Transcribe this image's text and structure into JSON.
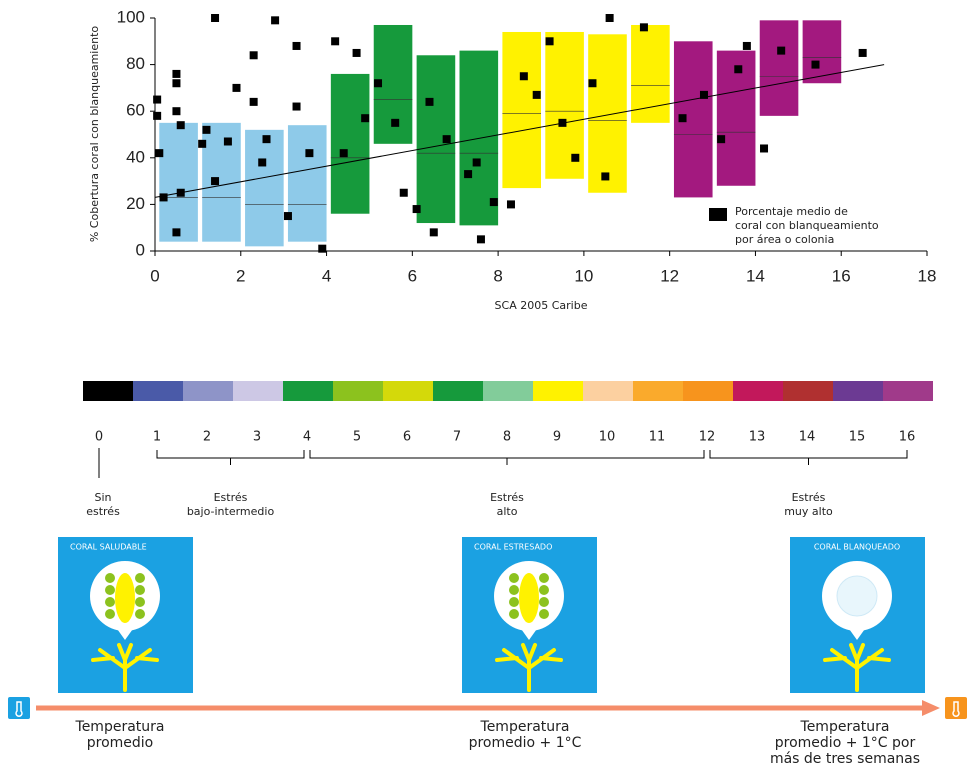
{
  "chart_data": {
    "type": "boxscatter",
    "ylabel": "% Cobertura coral con blanqueamiento",
    "xlabel": "SCA 2005 Caribe",
    "xlim": [
      0,
      18
    ],
    "xticks": [
      0,
      2,
      4,
      6,
      8,
      10,
      12,
      14,
      16,
      18
    ],
    "ylim": [
      0,
      100
    ],
    "yticks": [
      0,
      20,
      40,
      60,
      80,
      100
    ],
    "boxes": [
      {
        "x": [
          0.1,
          1.0
        ],
        "low": 4,
        "high": 55,
        "median": 23,
        "color": "#8ecae9"
      },
      {
        "x": [
          1.1,
          2.0
        ],
        "low": 4,
        "high": 55,
        "median": 23,
        "color": "#8ecae9"
      },
      {
        "x": [
          2.1,
          3.0
        ],
        "low": 2,
        "high": 52,
        "median": 20,
        "color": "#8ecae9"
      },
      {
        "x": [
          3.1,
          4.0
        ],
        "low": 4,
        "high": 54,
        "median": 20,
        "color": "#8ecae9"
      },
      {
        "x": [
          4.1,
          5.0
        ],
        "low": 16,
        "high": 76,
        "median": 40,
        "color": "#169a3c"
      },
      {
        "x": [
          5.1,
          6.0
        ],
        "low": 46,
        "high": 97,
        "median": 65,
        "color": "#169a3c"
      },
      {
        "x": [
          6.1,
          7.0
        ],
        "low": 12,
        "high": 84,
        "median": 42,
        "color": "#169a3c"
      },
      {
        "x": [
          7.1,
          8.0
        ],
        "low": 11,
        "high": 86,
        "median": 42,
        "color": "#169a3c"
      },
      {
        "x": [
          8.1,
          9.0
        ],
        "low": 27,
        "high": 94,
        "median": 59,
        "color": "#fff200"
      },
      {
        "x": [
          9.1,
          10.0
        ],
        "low": 31,
        "high": 94,
        "median": 60,
        "color": "#fff200"
      },
      {
        "x": [
          10.1,
          11.0
        ],
        "low": 25,
        "high": 93,
        "median": 56,
        "color": "#fff200"
      },
      {
        "x": [
          11.1,
          12.0
        ],
        "low": 55,
        "high": 97,
        "median": 71,
        "color": "#fff200"
      },
      {
        "x": [
          12.1,
          13.0
        ],
        "low": 23,
        "high": 90,
        "median": 50,
        "color": "#a3197f"
      },
      {
        "x": [
          13.1,
          14.0
        ],
        "low": 28,
        "high": 86,
        "median": 51,
        "color": "#a3197f"
      },
      {
        "x": [
          14.1,
          15.0
        ],
        "low": 58,
        "high": 99,
        "median": 75,
        "color": "#a3197f"
      },
      {
        "x": [
          15.1,
          16.0
        ],
        "low": 72,
        "high": 99,
        "median": 83,
        "color": "#a3197f"
      }
    ],
    "points": {
      "name": [
        "Porcentaje medio de",
        "coral con blanqueamiento",
        "por área o colonia"
      ],
      "color": "#000000",
      "x": [
        0.05,
        0.05,
        0.1,
        0.2,
        0.5,
        0.5,
        0.5,
        0.6,
        0.6,
        0.5,
        1.1,
        1.2,
        1.4,
        1.7,
        1.9,
        2.3,
        2.5,
        2.6,
        2.8,
        3.1,
        3.3,
        3.6,
        3.9,
        4.2,
        4.4,
        4.7,
        4.9,
        5.2,
        5.6,
        5.8,
        6.1,
        6.4,
        6.5,
        6.8,
        7.3,
        7.5,
        7.6,
        7.9,
        8.3,
        8.6,
        8.9,
        9.2,
        9.5,
        9.8,
        10.2,
        10.5,
        10.6,
        11.4,
        12.3,
        12.8,
        13.2,
        13.6,
        13.8,
        14.2,
        14.6,
        15.4,
        16.5,
        2.3,
        3.3,
        1.4
      ],
      "y": [
        65,
        58,
        42,
        23,
        76,
        72,
        60,
        54,
        25,
        8,
        46,
        52,
        30,
        47,
        70,
        64,
        38,
        48,
        99,
        15,
        62,
        42,
        1,
        90,
        42,
        85,
        57,
        72,
        55,
        25,
        18,
        64,
        8,
        48,
        33,
        38,
        5,
        21,
        20,
        75,
        67,
        90,
        55,
        40,
        72,
        32,
        100,
        96,
        57,
        67,
        48,
        78,
        88,
        44,
        86,
        80,
        85,
        84,
        88,
        100
      ]
    },
    "trend": {
      "x": [
        0,
        17
      ],
      "y": [
        23,
        80
      ],
      "color": "#000000"
    }
  },
  "scale": {
    "colors": [
      "#000000",
      "#4a5aa8",
      "#8e94c8",
      "#cdc8e5",
      "#169a3c",
      "#8cc21e",
      "#d4d90a",
      "#169a3c",
      "#82cc9a",
      "#fff200",
      "#fcd0a0",
      "#faaa2c",
      "#f7941d",
      "#c2185b",
      "#b03030",
      "#6c3a93",
      "#a03a8a"
    ],
    "labels": [
      0,
      1,
      2,
      3,
      4,
      5,
      6,
      7,
      8,
      9,
      10,
      11,
      12,
      13,
      14,
      15,
      16
    ],
    "groups": [
      {
        "label": [
          "Sin",
          "estrés"
        ],
        "range": [
          0,
          0
        ]
      },
      {
        "label": [
          "Estrés",
          "bajo-intermedio"
        ],
        "range": [
          1,
          4
        ]
      },
      {
        "label": [
          "Estrés",
          "alto"
        ],
        "range": [
          4,
          12
        ]
      },
      {
        "label": [
          "Estrés",
          "muy alto"
        ],
        "range": [
          12,
          16
        ]
      }
    ]
  },
  "cards": [
    {
      "title": "CORAL SALUDABLE",
      "temperature": [
        "Temperatura",
        "promedio"
      ]
    },
    {
      "title": "CORAL ESTRESADO",
      "temperature": [
        "Temperatura",
        "promedio + 1°C"
      ]
    },
    {
      "title": "CORAL BLANQUEADO",
      "temperature": [
        "Temperatura",
        "promedio + 1°C por",
        "más de tres semanas"
      ]
    }
  ]
}
